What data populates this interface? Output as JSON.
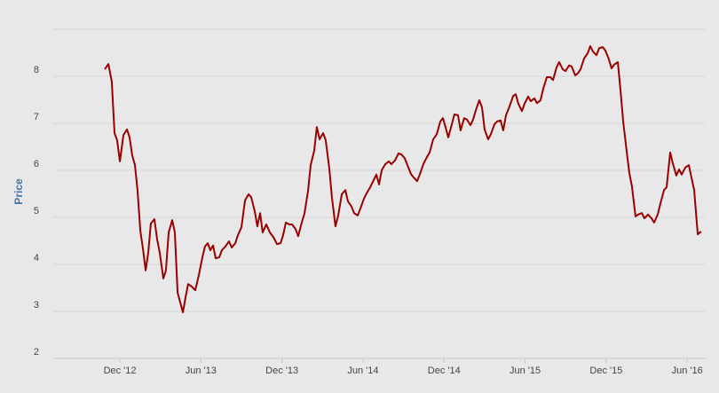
{
  "chart_data": {
    "type": "line",
    "y_label": "Price",
    "x": [
      2012.824,
      2012.846,
      2012.867,
      2012.884,
      2012.9,
      2012.917,
      2012.939,
      2012.961,
      2012.977,
      2012.993,
      2013.01,
      2013.026,
      2013.043,
      2013.059,
      2013.076,
      2013.092,
      2013.108,
      2013.13,
      2013.147,
      2013.163,
      2013.185,
      2013.201,
      2013.218,
      2013.24,
      2013.256,
      2013.273,
      2013.306,
      2013.322,
      2013.338,
      2013.36,
      2013.382,
      2013.404,
      2013.426,
      2013.442,
      2013.459,
      2013.475,
      2013.492,
      2013.508,
      2013.53,
      2013.546,
      2013.568,
      2013.59,
      2013.607,
      2013.629,
      2013.645,
      2013.667,
      2013.689,
      2013.711,
      2013.727,
      2013.749,
      2013.765,
      2013.782,
      2013.798,
      2013.82,
      2013.842,
      2013.864,
      2013.886,
      2013.908,
      2013.924,
      2013.941,
      2013.963,
      2013.979,
      2014.001,
      2014.017,
      2014.039,
      2014.056,
      2014.078,
      2014.094,
      2014.116,
      2014.132,
      2014.149,
      2014.171,
      2014.187,
      2014.209,
      2014.225,
      2014.247,
      2014.264,
      2014.286,
      2014.308,
      2014.324,
      2014.346,
      2014.362,
      2014.384,
      2014.401,
      2014.423,
      2014.439,
      2014.461,
      2014.477,
      2014.499,
      2014.516,
      2014.532,
      2014.554,
      2014.576,
      2014.592,
      2014.614,
      2014.636,
      2014.653,
      2014.674,
      2014.691,
      2014.713,
      2014.729,
      2014.751,
      2014.768,
      2014.789,
      2014.811,
      2014.828,
      2014.85,
      2014.872,
      2014.894,
      2014.91,
      2014.926,
      2014.943,
      2014.965,
      2014.981,
      2015.003,
      2015.019,
      2015.041,
      2015.058,
      2015.08,
      2015.096,
      2015.113,
      2015.134,
      2015.151,
      2015.167,
      2015.189,
      2015.206,
      2015.228,
      2015.244,
      2015.266,
      2015.282,
      2015.299,
      2015.321,
      2015.343,
      2015.359,
      2015.375,
      2015.397,
      2015.414,
      2015.436,
      2015.452,
      2015.474,
      2015.49,
      2015.512,
      2015.529,
      2015.551,
      2015.573,
      2015.589,
      2015.611,
      2015.627,
      2015.649,
      2015.666,
      2015.688,
      2015.704,
      2015.726,
      2015.742,
      2015.759,
      2015.781,
      2015.803,
      2015.819,
      2015.835,
      2015.857,
      2015.874,
      2015.896,
      2015.912,
      2015.934,
      2015.95,
      2015.967,
      2015.989,
      2016.005,
      2016.022,
      2016.043,
      2016.06,
      2016.076,
      2016.098,
      2016.115,
      2016.137,
      2016.153,
      2016.175,
      2016.197,
      2016.213,
      2016.235,
      2016.252,
      2016.274,
      2016.29,
      2016.312,
      2016.328,
      2016.35,
      2016.367,
      2016.383,
      2016.405,
      2016.427,
      2016.443,
      2016.46,
      2016.482,
      2016.503
    ],
    "series": [
      {
        "color": "#990000",
        "values": [
          8.15,
          8.26,
          7.89,
          6.79,
          6.64,
          6.19,
          6.75,
          6.87,
          6.7,
          6.32,
          6.11,
          5.57,
          4.72,
          4.34,
          3.87,
          4.25,
          4.87,
          4.96,
          4.53,
          4.25,
          3.7,
          3.87,
          4.68,
          4.94,
          4.68,
          3.4,
          2.98,
          3.3,
          3.58,
          3.53,
          3.45,
          3.77,
          4.15,
          4.38,
          4.45,
          4.3,
          4.4,
          4.13,
          4.15,
          4.3,
          4.38,
          4.49,
          4.36,
          4.45,
          4.62,
          4.79,
          5.36,
          5.49,
          5.43,
          5.13,
          4.81,
          5.09,
          4.68,
          4.85,
          4.68,
          4.58,
          4.43,
          4.45,
          4.62,
          4.89,
          4.85,
          4.85,
          4.75,
          4.6,
          4.89,
          5.08,
          5.57,
          6.11,
          6.42,
          6.92,
          6.66,
          6.79,
          6.64,
          6.04,
          5.43,
          4.81,
          5.04,
          5.49,
          5.58,
          5.34,
          5.23,
          5.09,
          5.04,
          5.19,
          5.4,
          5.51,
          5.64,
          5.75,
          5.91,
          5.7,
          6.0,
          6.13,
          6.19,
          6.13,
          6.21,
          6.36,
          6.34,
          6.26,
          6.11,
          5.92,
          5.85,
          5.77,
          5.92,
          6.13,
          6.28,
          6.38,
          6.66,
          6.77,
          7.04,
          7.11,
          6.92,
          6.7,
          6.98,
          7.19,
          7.17,
          6.85,
          7.11,
          7.08,
          6.96,
          7.08,
          7.28,
          7.49,
          7.34,
          6.87,
          6.66,
          6.77,
          6.98,
          7.04,
          7.06,
          6.85,
          7.17,
          7.36,
          7.58,
          7.62,
          7.42,
          7.26,
          7.42,
          7.57,
          7.47,
          7.53,
          7.43,
          7.49,
          7.74,
          7.98,
          7.98,
          7.92,
          8.19,
          8.3,
          8.15,
          8.11,
          8.23,
          8.21,
          8.02,
          8.06,
          8.15,
          8.38,
          8.49,
          8.64,
          8.53,
          8.45,
          8.6,
          8.62,
          8.55,
          8.36,
          8.17,
          8.25,
          8.3,
          7.72,
          7.04,
          6.42,
          5.94,
          5.66,
          5.02,
          5.06,
          5.09,
          4.98,
          5.06,
          4.98,
          4.89,
          5.06,
          5.3,
          5.58,
          5.64,
          6.38,
          6.15,
          5.89,
          6.02,
          5.91,
          6.06,
          6.11,
          5.85,
          5.58,
          4.64,
          4.7
        ]
      }
    ],
    "xlim": [
      2012.506,
      2016.531
    ],
    "xticks": [
      {
        "value": 2012.917,
        "label": "Dec '12"
      },
      {
        "value": 2013.417,
        "label": "Jun '13"
      },
      {
        "value": 2013.917,
        "label": "Dec '13"
      },
      {
        "value": 2014.417,
        "label": "Jun '14"
      },
      {
        "value": 2014.917,
        "label": "Dec '14"
      },
      {
        "value": 2015.417,
        "label": "Jun '15"
      },
      {
        "value": 2015.917,
        "label": "Dec '15"
      },
      {
        "value": 2016.417,
        "label": "Jun '16"
      }
    ],
    "ylim": [
      2,
      9
    ],
    "yticks": [
      2,
      3,
      4,
      5,
      6,
      7,
      8
    ],
    "grid": true
  }
}
